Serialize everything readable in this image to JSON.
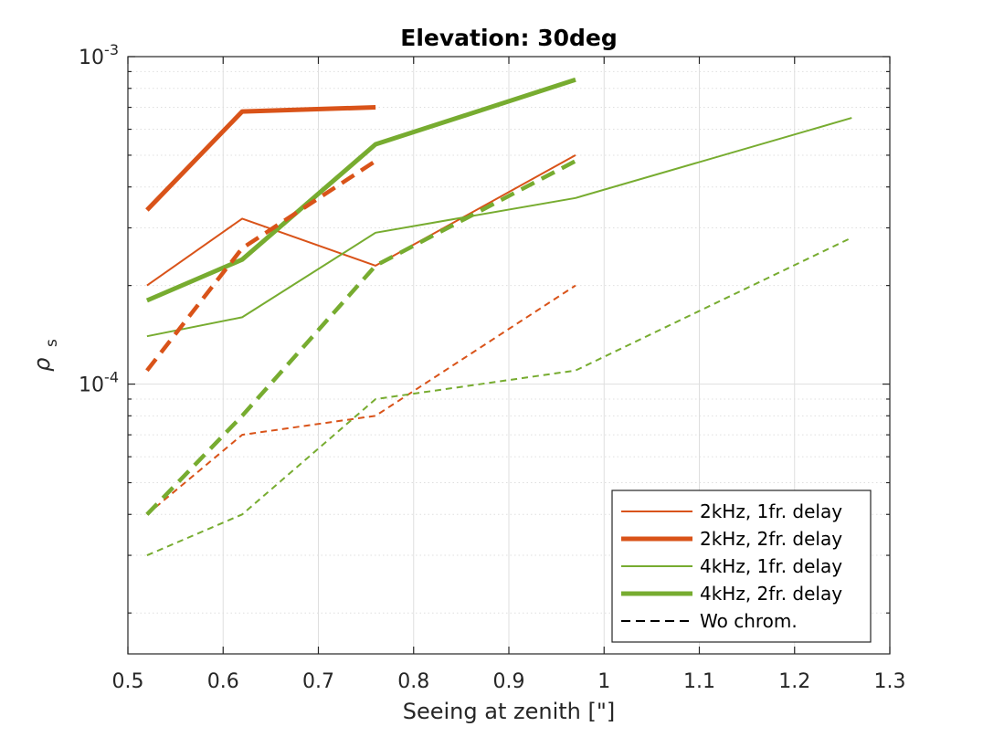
{
  "chart_data": {
    "type": "line",
    "title": "Elevation: 30deg",
    "xlabel": "Seeing at zenith [\"]",
    "ylabel": "ρ",
    "ylabel_subscript": "s",
    "yscale": "log",
    "xlim": [
      0.5,
      1.3
    ],
    "ylim": [
      1.5e-05,
      0.001
    ],
    "xticks": [
      0.5,
      0.6,
      0.7,
      0.8,
      0.9,
      1.0,
      1.1,
      1.2,
      1.3
    ],
    "xtick_labels": [
      "0.5",
      "0.6",
      "0.7",
      "0.8",
      "0.9",
      "1",
      "1.1",
      "1.2",
      "1.3"
    ],
    "yticks_major": [
      0.0001,
      0.001
    ],
    "ytick_labels": [
      {
        "base": "10",
        "exp": "-4"
      },
      {
        "base": "10",
        "exp": "-3"
      }
    ],
    "grid": true,
    "legend_position": "bottom-right",
    "colors": {
      "orange": "#d95319",
      "green": "#77ac30"
    },
    "series": [
      {
        "name": "2kHz, 1fr. delay",
        "color": "#d95319",
        "style": "solid",
        "width": "thin",
        "x": [
          0.52,
          0.62,
          0.76,
          0.97
        ],
        "y": [
          0.0002,
          0.00032,
          0.00023,
          0.0005
        ]
      },
      {
        "name": "2kHz, 2fr. delay",
        "color": "#d95319",
        "style": "solid",
        "width": "thick",
        "x": [
          0.52,
          0.62,
          0.76
        ],
        "y": [
          0.00034,
          0.00068,
          0.0007
        ]
      },
      {
        "name": "4kHz, 1fr. delay",
        "color": "#77ac30",
        "style": "solid",
        "width": "thin",
        "x": [
          0.52,
          0.62,
          0.76,
          0.97,
          1.26
        ],
        "y": [
          0.00014,
          0.00016,
          0.00029,
          0.00037,
          0.00065
        ]
      },
      {
        "name": "4kHz, 2fr. delay",
        "color": "#77ac30",
        "style": "solid",
        "width": "thick",
        "x": [
          0.52,
          0.62,
          0.76,
          0.97
        ],
        "y": [
          0.00018,
          0.00024,
          0.00054,
          0.00085
        ]
      },
      {
        "name": "2kHz, 1fr. delay (Wo chrom.)",
        "color": "#d95319",
        "style": "dashed",
        "width": "thin",
        "x": [
          0.52,
          0.62,
          0.76,
          0.97
        ],
        "y": [
          4e-05,
          7e-05,
          8e-05,
          0.0002
        ]
      },
      {
        "name": "2kHz, 2fr. delay (Wo chrom.)",
        "color": "#d95319",
        "style": "dashed",
        "width": "thick",
        "x": [
          0.52,
          0.62,
          0.76
        ],
        "y": [
          0.00011,
          0.00026,
          0.00048
        ]
      },
      {
        "name": "4kHz, 1fr. delay (Wo chrom.)",
        "color": "#77ac30",
        "style": "dashed",
        "width": "thin",
        "x": [
          0.52,
          0.62,
          0.76,
          0.97,
          1.26
        ],
        "y": [
          3e-05,
          4e-05,
          9e-05,
          0.00011,
          0.00028
        ]
      },
      {
        "name": "4kHz, 2fr. delay (Wo chrom.)",
        "color": "#77ac30",
        "style": "dashed",
        "width": "thick",
        "x": [
          0.52,
          0.62,
          0.76,
          0.97
        ],
        "y": [
          4e-05,
          8e-05,
          0.00023,
          0.00048
        ]
      }
    ],
    "legend": [
      {
        "label": "2kHz, 1fr. delay",
        "color": "#d95319",
        "style": "solid",
        "width": "thin"
      },
      {
        "label": "2kHz, 2fr. delay",
        "color": "#d95319",
        "style": "solid",
        "width": "thick"
      },
      {
        "label": "4kHz, 1fr. delay",
        "color": "#77ac30",
        "style": "solid",
        "width": "thin"
      },
      {
        "label": "4kHz, 2fr. delay",
        "color": "#77ac30",
        "style": "solid",
        "width": "thick"
      },
      {
        "label": "Wo chrom.",
        "color": "#000000",
        "style": "dashed",
        "width": "thin"
      }
    ]
  }
}
